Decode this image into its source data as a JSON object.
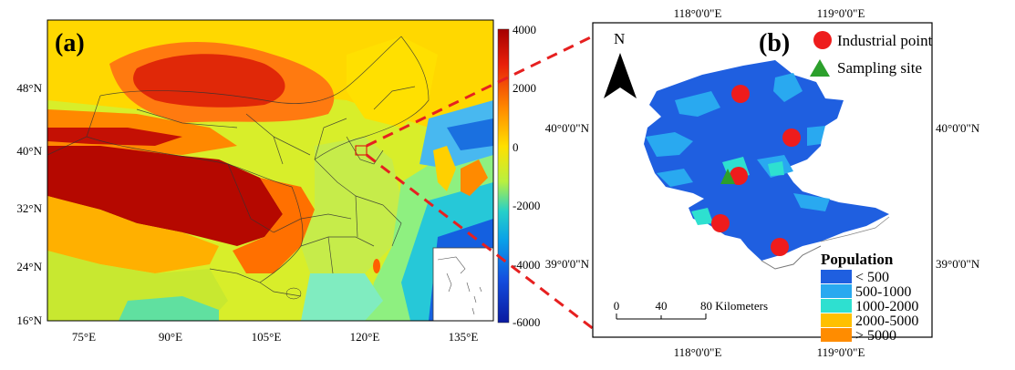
{
  "panel_a": {
    "label": "(a)",
    "lat_ticks": [
      "48°N",
      "40°N",
      "32°N",
      "24°N",
      "16°N"
    ],
    "lon_ticks": [
      "75°E",
      "90°E",
      "105°E",
      "120°E",
      "135°E"
    ],
    "colorbar": {
      "labels": [
        "4000",
        "2000",
        "0",
        "-2000",
        "-4000",
        "-6000"
      ],
      "colors": [
        "#a50000",
        "#e8200a",
        "#ff8a00",
        "#ffe000",
        "#b8f040",
        "#26d0c8",
        "#0aa0e8",
        "#1450e0",
        "#0a1aa0"
      ]
    }
  },
  "panel_b": {
    "label": "(b)",
    "north": "N",
    "top_lon_ticks": [
      "118°0'0\"E",
      "119°0'0\"E"
    ],
    "bottom_lon_ticks": [
      "118°0'0\"E",
      "119°0'0\"E"
    ],
    "left_lat_ticks": [
      "40°0'0\"N",
      "39°0'0\"N"
    ],
    "right_lat_ticks": [
      "40°0'0\"N",
      "39°0'0\"N"
    ],
    "legend": {
      "industrial": "Industrial point",
      "sampling": "Sampling site",
      "industrial_color": "#ee1c1c",
      "sampling_color": "#2ca02c"
    },
    "scalebar": {
      "labels": [
        "0",
        "40",
        "80 Kilometers"
      ]
    },
    "population": {
      "title": "Population",
      "classes": [
        {
          "label": "< 500",
          "color": "#1f5fe0"
        },
        {
          "label": "500-1000",
          "color": "#29a9f0"
        },
        {
          "label": "1000-2000",
          "color": "#2ee0d0"
        },
        {
          "label": "2000-5000",
          "color": "#ffc000"
        },
        {
          "label": "> 5000",
          "color": "#ff8c00"
        }
      ]
    }
  }
}
